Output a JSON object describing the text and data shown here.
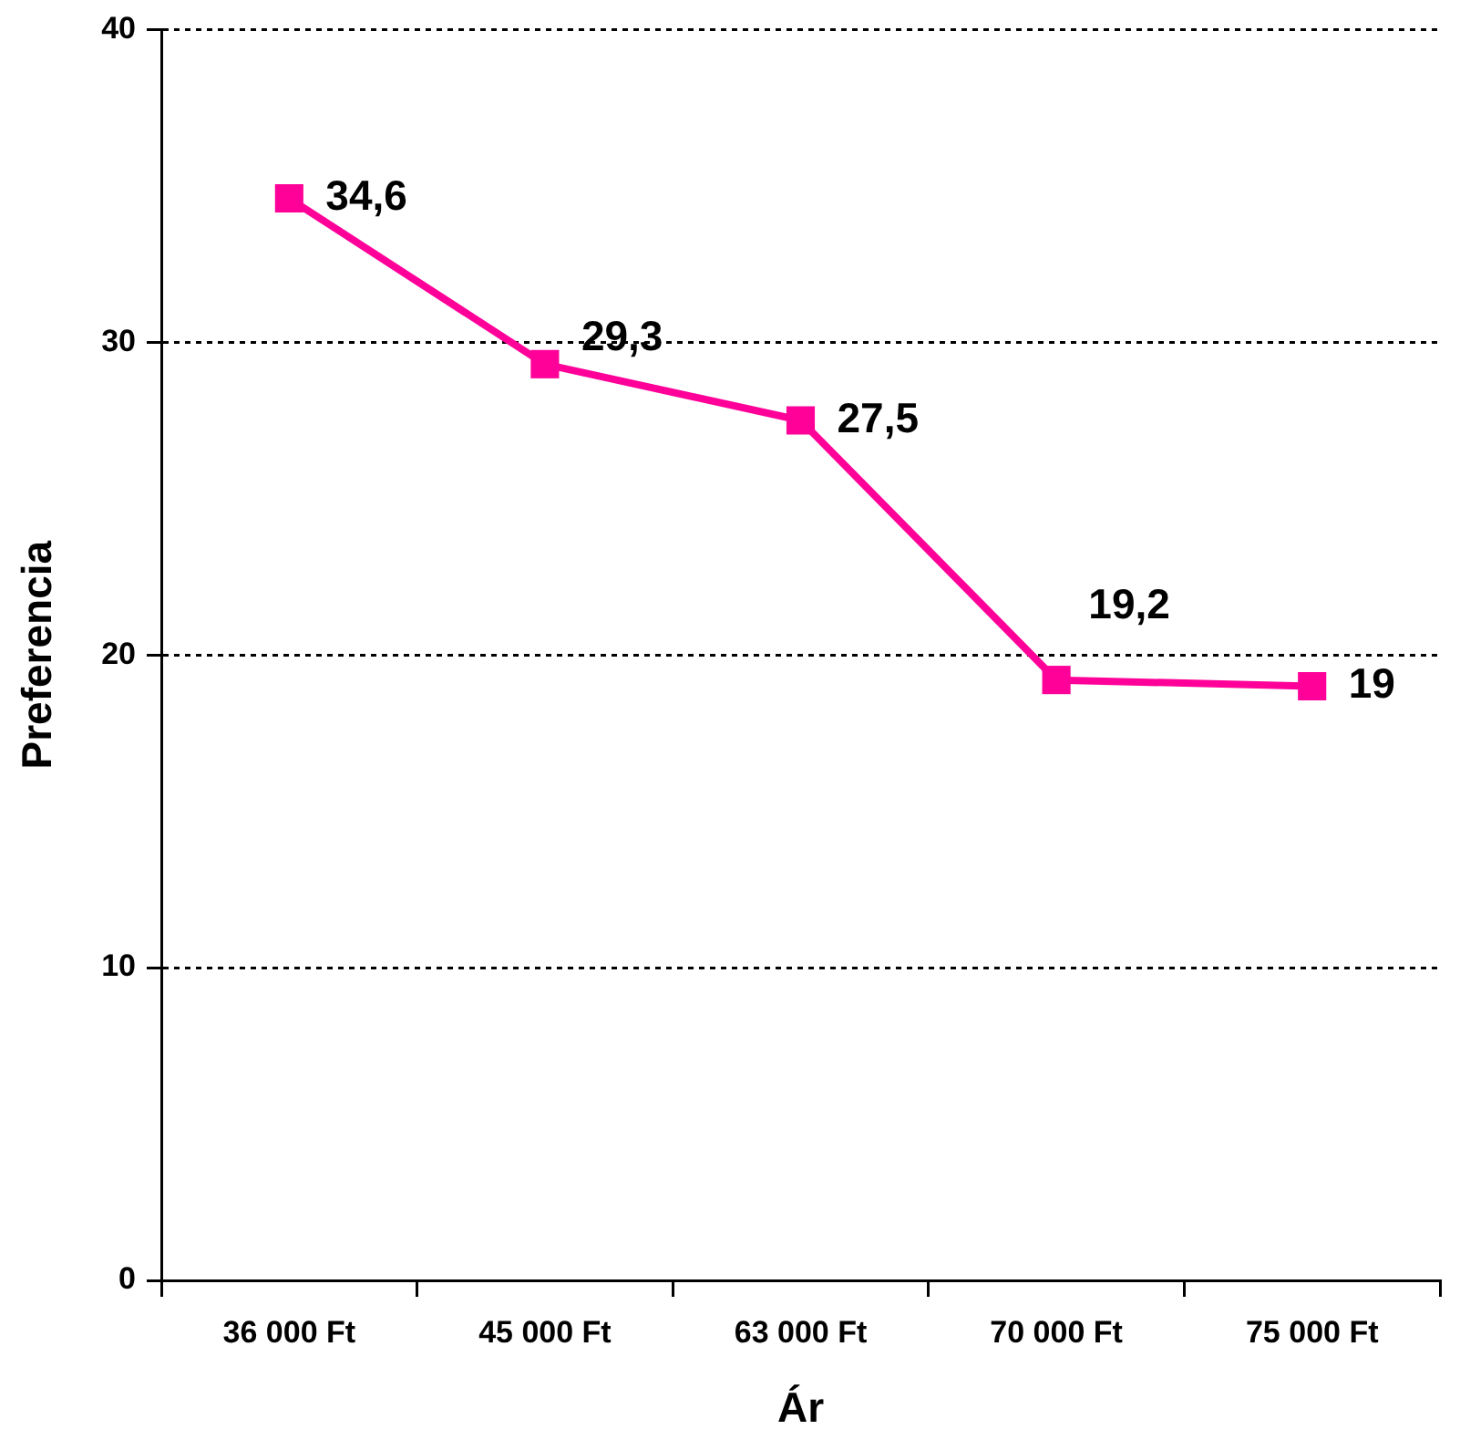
{
  "chart_data": {
    "type": "line",
    "xlabel": "Ár",
    "ylabel": "Preferencia",
    "categories": [
      "36 000 Ft",
      "45 000 Ft",
      "63 000 Ft",
      "70 000 Ft",
      "75 000 Ft"
    ],
    "series": [
      {
        "color": "#ff0099",
        "values": [
          34.6,
          29.3,
          27.5,
          19.2,
          19
        ],
        "value_labels": [
          "34,6",
          "29,3",
          "27,5",
          "19,2",
          "19"
        ]
      }
    ],
    "ylim": [
      0,
      40
    ],
    "yticks": [
      0,
      10,
      20,
      30,
      40
    ],
    "grid": "y",
    "legend": false,
    "marker": "square",
    "line_style": "solid"
  }
}
